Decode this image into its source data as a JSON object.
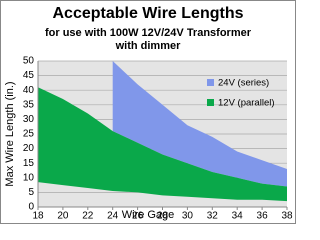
{
  "chart_data": {
    "type": "range-area",
    "title": "Acceptable Wire Lengths",
    "subtitle": [
      "for use with 100W 12V/24V Transformer",
      "with dimmer"
    ],
    "x_label": "Wire Gage",
    "y_label": "Max Wire Length (in.)",
    "x": [
      18,
      20,
      22,
      24,
      26,
      28,
      30,
      32,
      34,
      36,
      38
    ],
    "series": [
      {
        "name": "24V (series)",
        "color": "#8097ea",
        "high": [
          null,
          null,
          null,
          50,
          42,
          35,
          28,
          24,
          19,
          16,
          13
        ],
        "low": [
          null,
          null,
          null,
          26,
          22,
          18,
          15,
          12,
          10,
          8,
          7
        ]
      },
      {
        "name": "12V (parallel)",
        "color": "#0aa84a",
        "high": [
          41,
          37,
          32,
          26,
          22,
          18,
          15,
          12,
          10,
          8,
          7
        ],
        "low": [
          8.5,
          7.5,
          6.5,
          5.5,
          5,
          4,
          3.5,
          3,
          2.5,
          2.5,
          2
        ]
      }
    ],
    "xlim": [
      18,
      38
    ],
    "xticks": [
      18,
      20,
      22,
      24,
      26,
      28,
      30,
      32,
      34,
      36,
      38
    ],
    "ylim": [
      0,
      50
    ],
    "yticks": [
      0,
      5,
      10,
      15,
      20,
      25,
      30,
      35,
      40,
      45,
      50
    ],
    "grid": true,
    "legend": "upper-right"
  }
}
